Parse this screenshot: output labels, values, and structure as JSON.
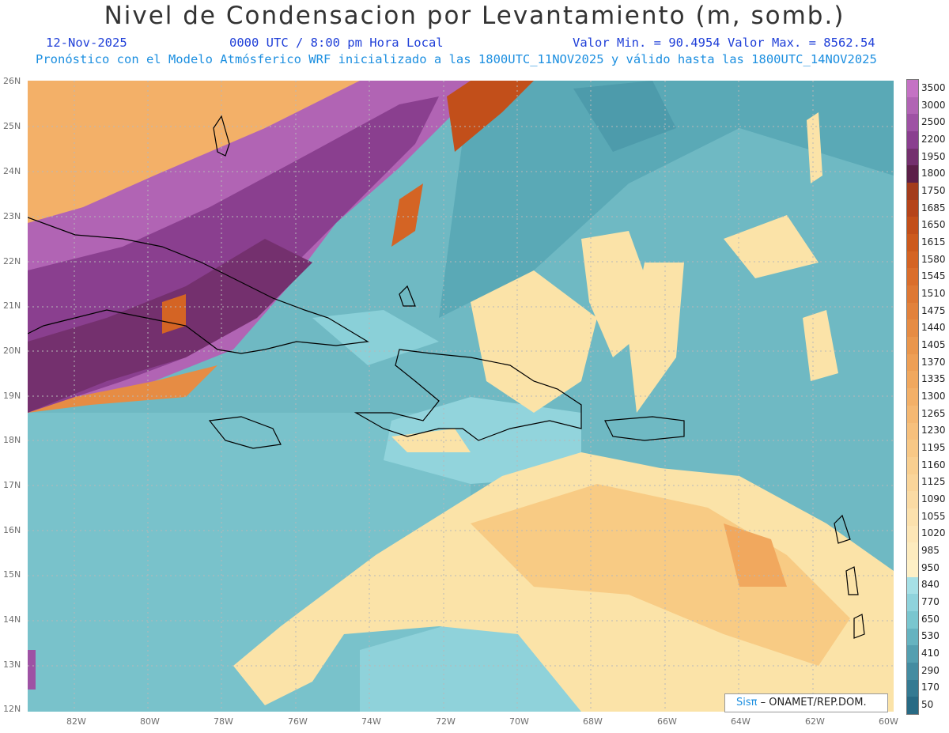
{
  "header": {
    "title": "Nivel de Condensacion por Levantamiento (m, somb.)",
    "date": "12-Nov-2025",
    "time": "0000 UTC / 8:00 pm Hora Local",
    "min_max": "Valor Min. = 90.4954  Valor Max. = 8562.54",
    "forecast_note": "Pronóstico con el Modelo Atmósferico WRF inicializado a las 1800UTC_11NOV2025 y válido hasta las  1800UTC_14NOV2025"
  },
  "map": {
    "lat_ticks": [
      "26N",
      "25N",
      "24N",
      "23N",
      "22N",
      "21N",
      "20N",
      "19N",
      "18N",
      "17N",
      "16N",
      "15N",
      "14N",
      "13N",
      "12N"
    ],
    "lon_ticks": [
      "82W",
      "80W",
      "78W",
      "76W",
      "74W",
      "72W",
      "70W",
      "68W",
      "66W",
      "64W",
      "62W",
      "60W"
    ],
    "credit_brand": "Sisπ",
    "credit_org": "– ONAMET/REP.DOM."
  },
  "legend": {
    "levels": [
      "3500",
      "3000",
      "2500",
      "2200",
      "1950",
      "1800",
      "1750",
      "1685",
      "1650",
      "1615",
      "1580",
      "1545",
      "1510",
      "1475",
      "1440",
      "1405",
      "1370",
      "1335",
      "1300",
      "1265",
      "1230",
      "1195",
      "1160",
      "1125",
      "1090",
      "1055",
      "1020",
      "985",
      "950",
      "840",
      "770",
      "650",
      "530",
      "410",
      "290",
      "170",
      "50"
    ],
    "colors": [
      "#c472c4",
      "#b164b4",
      "#9e52a4",
      "#8a3f8f",
      "#74306e",
      "#5c1f48",
      "#a33c1c",
      "#b5441a",
      "#c24f1a",
      "#cc5a1d",
      "#d46424",
      "#da6e2c",
      "#de7834",
      "#e2823c",
      "#e68c44",
      "#ea964c",
      "#ee9f55",
      "#f1a85e",
      "#f3b068",
      "#f5b872",
      "#f7c07c",
      "#f8c886",
      "#f9cf90",
      "#fad59a",
      "#fbdba4",
      "#fce1ad",
      "#fde6b6",
      "#fdebbe",
      "#fef0c6",
      "#a6e0e6",
      "#8fd3dc",
      "#7ac6cf",
      "#66b3c0",
      "#549fb0",
      "#448ca1",
      "#357a92",
      "#286a84"
    ]
  }
}
